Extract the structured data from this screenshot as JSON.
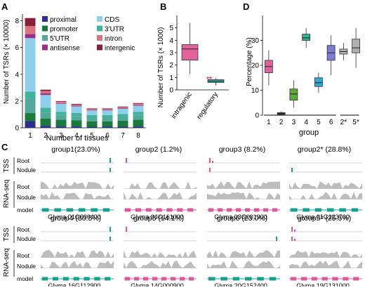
{
  "panels": {
    "A": {
      "letter": "A",
      "ylabel": "Number of TSRs (× 10000)",
      "xlabel": "Number of tissues",
      "legend": [
        {
          "label": "proximal",
          "color": "#2a2f8f"
        },
        {
          "label": "CDS",
          "color": "#8ecfee"
        },
        {
          "label": "promoter",
          "color": "#1a7a3c"
        },
        {
          "label": "3'UTR",
          "color": "#3fb49b"
        },
        {
          "label": "5'UTR",
          "color": "#52a89a"
        },
        {
          "label": "intron",
          "color": "#d9737e"
        },
        {
          "label": "antisense",
          "color": "#9a2f8a"
        },
        {
          "label": "intergenic",
          "color": "#8b1c3a"
        }
      ]
    },
    "B": {
      "letter": "B",
      "ylabel": "Number of TSRs (× 1000)",
      "significance": "**",
      "significance_color": "#e0325a"
    },
    "D": {
      "letter": "D",
      "ylabel": "Percentage (%)",
      "xlabel": "group"
    },
    "C": {
      "letter": "C",
      "row_labels": {
        "tss": "TSS",
        "rnaseq": "RNA-seq",
        "root": "Root",
        "nodule": "Nodule",
        "model": "model"
      },
      "groups": [
        {
          "title": "group1(23.0%)",
          "gene": "Glyma.01G000400",
          "color": "#17a08f"
        },
        {
          "title": "group2 (1.2%)",
          "gene": "Glyma.04G161000",
          "color": "#d85a9a"
        },
        {
          "title": "group3 (8.2%)",
          "gene": "Glyma.03G001900",
          "color": "#d85a9a"
        },
        {
          "title": "group2* (28.8%)",
          "gene": "Glyma.01G223700",
          "color": "#17a08f"
        },
        {
          "title": "group4 (30.5%)",
          "gene": "Glyma.16G112900",
          "color": "#17a08f"
        },
        {
          "title": "group5 (14.1%)",
          "gene": "Glyma.14G000900",
          "color": "#d85a9a"
        },
        {
          "title": "group6 (23.0%)",
          "gene": "Glyma.20G152400",
          "color": "#17a08f"
        },
        {
          "title": "group5* (25.5%)",
          "gene": "Glyma.19G131000",
          "color": "#d85a9a"
        }
      ]
    }
  },
  "chart_data": [
    {
      "type": "bar",
      "stacked": true,
      "categories": [
        "1",
        "2",
        "3",
        "4",
        "5",
        "6",
        "7",
        "8"
      ],
      "xlabel": "Number of tissues",
      "ylabel": "Number of TSRs (× 10000)",
      "ylim": [
        0,
        8.5
      ],
      "yticks": [
        0,
        2,
        4,
        6,
        8
      ],
      "series": [
        {
          "name": "proximal",
          "color": "#2a2f8f",
          "values": [
            0.5,
            0.15,
            0.1,
            0.1,
            0.08,
            0.08,
            0.08,
            0.1
          ]
        },
        {
          "name": "promoter",
          "color": "#1a7a3c",
          "values": [
            0.6,
            0.55,
            0.5,
            0.45,
            0.4,
            0.4,
            0.45,
            0.5
          ]
        },
        {
          "name": "5'UTR",
          "color": "#52a89a",
          "values": [
            1.1,
            0.45,
            0.35,
            0.3,
            0.25,
            0.25,
            0.28,
            0.35
          ]
        },
        {
          "name": "3'UTR",
          "color": "#3fb49b",
          "values": [
            0.5,
            0.35,
            0.25,
            0.25,
            0.22,
            0.22,
            0.22,
            0.25
          ]
        },
        {
          "name": "CDS",
          "color": "#8ecfee",
          "values": [
            4.0,
            0.95,
            0.6,
            0.5,
            0.35,
            0.35,
            0.4,
            0.45
          ]
        },
        {
          "name": "antisense",
          "color": "#9a2f8a",
          "values": [
            0.3,
            0.12,
            0.05,
            0.05,
            0.04,
            0.04,
            0.04,
            0.05
          ]
        },
        {
          "name": "intron",
          "color": "#d9737e",
          "values": [
            0.6,
            0.18,
            0.1,
            0.08,
            0.07,
            0.07,
            0.08,
            0.1
          ]
        },
        {
          "name": "intergenic",
          "color": "#8b1c3a",
          "values": [
            0.6,
            0.1,
            0.05,
            0.05,
            0.04,
            0.04,
            0.04,
            0.05
          ]
        }
      ]
    },
    {
      "type": "box",
      "categories": [
        "intragenic",
        "regulatory"
      ],
      "ylabel": "Number of TSRs (× 1000)",
      "ylim": [
        0,
        6
      ],
      "yticks": [
        0,
        1,
        2,
        3,
        4,
        5
      ],
      "boxes": [
        {
          "name": "intragenic",
          "color": "#e0649b",
          "min": 1.3,
          "q1": 2.4,
          "median": 3.3,
          "q3": 3.65,
          "max": 5.4
        },
        {
          "name": "regulatory",
          "color": "#2ab0b8",
          "min": 0.35,
          "q1": 0.6,
          "median": 0.7,
          "q3": 0.82,
          "max": 0.95
        }
      ]
    },
    {
      "type": "box",
      "categories": [
        "1",
        "2",
        "3",
        "4",
        "5",
        "6",
        "2*",
        "5*"
      ],
      "xlabel": "group",
      "ylabel": "Percentage (%)",
      "ylim": [
        0,
        40
      ],
      "yticks": [
        0,
        10,
        20,
        30
      ],
      "boxes": [
        {
          "name": "1",
          "color": "#e0649b",
          "min": 12,
          "q1": 17,
          "median": 19.5,
          "q3": 22,
          "max": 26
        },
        {
          "name": "2",
          "color": "#3a3a3a",
          "min": 0,
          "q1": 0.3,
          "median": 0.6,
          "q3": 1,
          "max": 1.5
        },
        {
          "name": "3",
          "color": "#5aab3a",
          "min": 3,
          "q1": 6,
          "median": 8.5,
          "q3": 10.5,
          "max": 14
        },
        {
          "name": "4",
          "color": "#2eb39b",
          "min": 27,
          "q1": 30,
          "median": 31,
          "q3": 32.5,
          "max": 35
        },
        {
          "name": "5",
          "color": "#2fa7d8",
          "min": 9,
          "q1": 11.5,
          "median": 13,
          "q3": 15,
          "max": 17
        },
        {
          "name": "6",
          "color": "#7b7ed0",
          "min": 16,
          "q1": 22,
          "median": 25,
          "q3": 28,
          "max": 32
        },
        {
          "name": "2*",
          "color": "#b0b0b0",
          "min": 22,
          "q1": 24.5,
          "median": 25.5,
          "q3": 26.5,
          "max": 29
        },
        {
          "name": "5*",
          "color": "#b0b0b0",
          "min": 19,
          "q1": 25,
          "median": 27,
          "q3": 30.5,
          "max": 35
        }
      ]
    }
  ]
}
